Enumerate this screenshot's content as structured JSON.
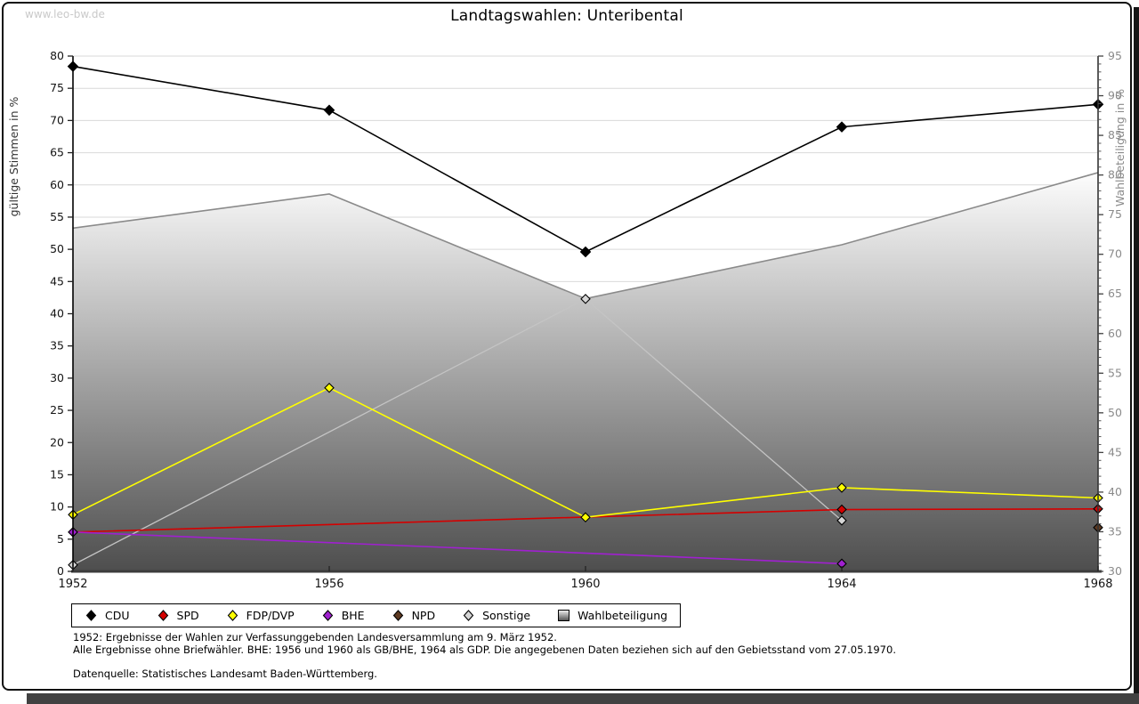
{
  "page": {
    "watermark": "www.leo-bw.de",
    "title": "Landtagswahlen: Unteribental"
  },
  "chart_data": {
    "type": "line",
    "title": "Landtagswahlen: Unteribental",
    "x_categories": [
      "1952",
      "1956",
      "1960",
      "1964",
      "1968"
    ],
    "left_axis": {
      "label": "gültige Stimmen in %",
      "min": 0,
      "max": 80,
      "tick_step": 5
    },
    "right_axis": {
      "label": "Wahlbeteiligung in %",
      "min": 30,
      "max": 95,
      "tick_step": 5,
      "minor_tick_step": 1
    },
    "grid": "horizontal",
    "legend_position": "bottom",
    "series": [
      {
        "name": "CDU",
        "type": "line",
        "axis": "left",
        "color": "#000000",
        "marker": "diamond",
        "values": [
          78.4,
          71.6,
          49.6,
          69.0,
          72.5
        ]
      },
      {
        "name": "SPD",
        "type": "line",
        "axis": "left",
        "color": "#d40000",
        "marker": "diamond",
        "values": [
          6.1,
          null,
          null,
          9.6,
          9.7
        ]
      },
      {
        "name": "FDP/DVP",
        "type": "line",
        "axis": "left",
        "color": "#ffff00",
        "marker": "diamond",
        "values": [
          8.8,
          28.5,
          8.4,
          13.0,
          11.4
        ]
      },
      {
        "name": "BHE",
        "type": "line",
        "axis": "left",
        "color": "#a020d0",
        "marker": "diamond",
        "values": [
          6.1,
          null,
          null,
          1.2,
          null
        ]
      },
      {
        "name": "NPD",
        "type": "line",
        "axis": "left",
        "color": "#5e3a22",
        "marker": "diamond",
        "values": [
          null,
          null,
          null,
          null,
          6.8
        ]
      },
      {
        "name": "Sonstige",
        "type": "line",
        "axis": "left",
        "color": "#c4c4c4",
        "marker": "diamond",
        "marker_fill": "#d6d6d6",
        "values": [
          1.0,
          null,
          42.3,
          7.9,
          null
        ]
      },
      {
        "name": "Wahlbeteiligung",
        "type": "area",
        "axis": "right",
        "color": "#8a8a8a",
        "marker": "square-gradient",
        "values": [
          73.3,
          77.6,
          64.4,
          71.2,
          80.3
        ]
      }
    ]
  },
  "footnotes": {
    "line1": "1952: Ergebnisse der Wahlen zur Verfassunggebenden Landesversammlung am 9. März 1952.",
    "line2": "Alle Ergebnisse ohne Briefwähler. BHE: 1956 und 1960 als GB/BHE, 1964 als GDP. Die angegebenen Daten beziehen sich auf den Gebietsstand vom 27.05.1970.",
    "source": "Datenquelle: Statistisches Landesamt Baden-Württemberg."
  }
}
